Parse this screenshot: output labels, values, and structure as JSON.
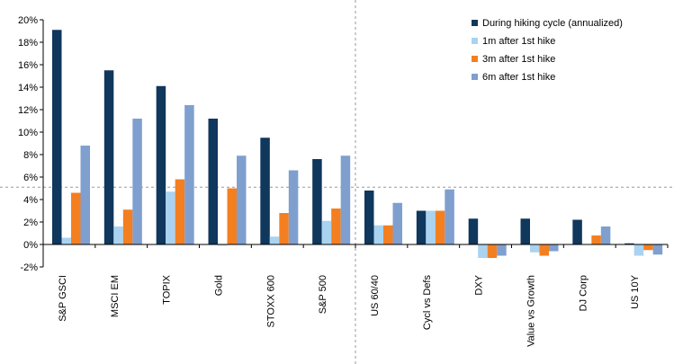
{
  "chart_data": {
    "type": "bar",
    "title": "",
    "xlabel": "",
    "ylabel": "",
    "ylim": [
      -2,
      20
    ],
    "ytick_step": 2,
    "ytick_format": "percent",
    "grid": false,
    "legend_position": "top-right",
    "reference_lines": {
      "horizontal_value": 5.1,
      "vertical_after_category": "S&P 500"
    },
    "categories": [
      "S&P GSCI",
      "MSCI EM",
      "TOPIX",
      "Gold",
      "STOXX 600",
      "S&P 500",
      "US 60/40",
      "Cycl vs Defs",
      "DXY",
      "Value vs Growth",
      "DJ Corp",
      "US 10Y"
    ],
    "series": [
      {
        "name": "During hiking cycle (annualized)",
        "color": "#10375c",
        "values": [
          19.1,
          15.5,
          14.1,
          11.2,
          9.5,
          7.6,
          4.8,
          3.0,
          2.3,
          2.3,
          2.2,
          0.1
        ]
      },
      {
        "name": "1m after 1st hike",
        "color": "#a9d3f0",
        "values": [
          0.6,
          1.6,
          4.7,
          -0.1,
          0.7,
          2.1,
          1.7,
          3.0,
          -1.2,
          -0.7,
          0.0,
          -1.0
        ]
      },
      {
        "name": "3m after 1st hike",
        "color": "#f47f20",
        "values": [
          4.6,
          3.1,
          5.8,
          5.0,
          2.8,
          3.2,
          1.7,
          3.0,
          -1.2,
          -1.0,
          0.8,
          -0.5
        ]
      },
      {
        "name": "6m after 1st hike",
        "color": "#7f9fcf",
        "values": [
          8.8,
          11.2,
          12.4,
          7.9,
          6.6,
          7.9,
          3.7,
          4.9,
          -1.0,
          -0.6,
          1.6,
          -0.9
        ]
      }
    ]
  }
}
